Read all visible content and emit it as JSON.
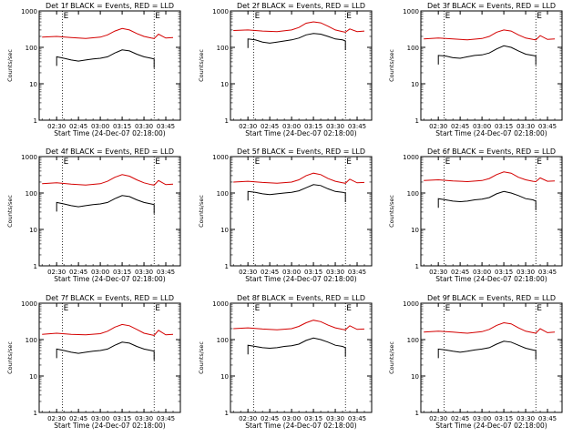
{
  "common": {
    "title_suffix": "BLACK = Events, RED = LLD",
    "xlabel": "Start Time (24-Dec-07 02:18:00)",
    "ylabel": "Counts/sec",
    "x_ticks": [
      "02:30",
      "02:45",
      "03:00",
      "03:15",
      "03:30",
      "03:45"
    ],
    "y_ticks": [
      "1",
      "10",
      "100",
      "1000"
    ],
    "marker_label": "E",
    "colors": {
      "events": "#000000",
      "lld": "#d40000"
    }
  },
  "chart_data": [
    {
      "type": "line",
      "title": "Det 1f BLACK = Events, RED = LLD",
      "xlabel": "Start Time (24-Dec-07 02:18:00)",
      "ylabel": "Counts/sec",
      "yscale": "log",
      "ylim": [
        1,
        1000
      ],
      "x_ticks": [
        "02:30",
        "02:45",
        "03:00",
        "03:15",
        "03:30",
        "03:45"
      ],
      "y_ticks": [
        "1",
        "10",
        "100",
        "1000"
      ],
      "vlines": [
        "02:34",
        "03:37"
      ],
      "vline_label": "E",
      "series": [
        {
          "name": "Events",
          "color": "#000000",
          "x": [
            "02:30",
            "02:35",
            "02:40",
            "02:45",
            "02:50",
            "02:55",
            "03:00",
            "03:05",
            "03:10",
            "03:15",
            "03:20",
            "03:25",
            "03:30",
            "03:35",
            "03:37"
          ],
          "values": [
            55,
            50,
            45,
            42,
            45,
            48,
            50,
            55,
            70,
            85,
            80,
            65,
            55,
            50,
            48
          ]
        },
        {
          "name": "LLD",
          "color": "#d40000",
          "x": [
            "02:20",
            "02:30",
            "02:40",
            "02:50",
            "03:00",
            "03:05",
            "03:10",
            "03:15",
            "03:20",
            "03:25",
            "03:30",
            "03:35",
            "03:37",
            "03:40",
            "03:45",
            "03:50"
          ],
          "values": [
            190,
            200,
            185,
            175,
            190,
            220,
            280,
            330,
            300,
            240,
            200,
            180,
            175,
            230,
            180,
            185
          ]
        }
      ]
    },
    {
      "type": "line",
      "title": "Det 2f BLACK = Events, RED = LLD",
      "xlabel": "Start Time (24-Dec-07 02:18:00)",
      "ylabel": "Counts/sec",
      "yscale": "log",
      "ylim": [
        1,
        1000
      ],
      "x_ticks": [
        "02:30",
        "02:45",
        "03:00",
        "03:15",
        "03:30",
        "03:45"
      ],
      "y_ticks": [
        "1",
        "10",
        "100",
        "1000"
      ],
      "vlines": [
        "02:34",
        "03:37"
      ],
      "vline_label": "E",
      "series": [
        {
          "name": "Events",
          "color": "#000000",
          "x": [
            "02:30",
            "02:35",
            "02:40",
            "02:45",
            "02:50",
            "02:55",
            "03:00",
            "03:05",
            "03:10",
            "03:15",
            "03:20",
            "03:25",
            "03:30",
            "03:35",
            "03:37"
          ],
          "values": [
            170,
            160,
            140,
            130,
            140,
            150,
            160,
            180,
            220,
            240,
            230,
            200,
            170,
            160,
            150
          ]
        },
        {
          "name": "LLD",
          "color": "#d40000",
          "x": [
            "02:20",
            "02:30",
            "02:40",
            "02:50",
            "03:00",
            "03:05",
            "03:10",
            "03:15",
            "03:20",
            "03:25",
            "03:30",
            "03:35",
            "03:37",
            "03:40",
            "03:45",
            "03:50"
          ],
          "values": [
            290,
            300,
            280,
            270,
            300,
            350,
            460,
            500,
            470,
            380,
            300,
            270,
            260,
            320,
            270,
            280
          ]
        }
      ]
    },
    {
      "type": "line",
      "title": "Det 3f BLACK = Events, RED = LLD",
      "xlabel": "Start Time (24-Dec-07 02:18:00)",
      "ylabel": "Counts/sec",
      "yscale": "log",
      "ylim": [
        1,
        1000
      ],
      "x_ticks": [
        "02:30",
        "02:45",
        "03:00",
        "03:15",
        "03:30",
        "03:45"
      ],
      "y_ticks": [
        "1",
        "10",
        "100",
        "1000"
      ],
      "vlines": [
        "02:34",
        "03:37"
      ],
      "vline_label": "E",
      "series": [
        {
          "name": "Events",
          "color": "#000000",
          "x": [
            "02:30",
            "02:35",
            "02:40",
            "02:45",
            "02:50",
            "02:55",
            "03:00",
            "03:05",
            "03:10",
            "03:15",
            "03:20",
            "03:25",
            "03:30",
            "03:35",
            "03:37"
          ],
          "values": [
            60,
            58,
            52,
            50,
            55,
            60,
            62,
            70,
            90,
            110,
            100,
            80,
            65,
            60,
            58
          ]
        },
        {
          "name": "LLD",
          "color": "#d40000",
          "x": [
            "02:20",
            "02:30",
            "02:40",
            "02:50",
            "03:00",
            "03:05",
            "03:10",
            "03:15",
            "03:20",
            "03:25",
            "03:30",
            "03:35",
            "03:37",
            "03:40",
            "03:45",
            "03:50"
          ],
          "values": [
            170,
            180,
            170,
            160,
            175,
            200,
            260,
            300,
            280,
            220,
            180,
            165,
            160,
            210,
            165,
            170
          ]
        }
      ]
    },
    {
      "type": "line",
      "title": "Det 4f BLACK = Events, RED = LLD",
      "xlabel": "Start Time (24-Dec-07 02:18:00)",
      "ylabel": "Counts/sec",
      "yscale": "log",
      "ylim": [
        1,
        1000
      ],
      "x_ticks": [
        "02:30",
        "02:45",
        "03:00",
        "03:15",
        "03:30",
        "03:45"
      ],
      "y_ticks": [
        "1",
        "10",
        "100",
        "1000"
      ],
      "vlines": [
        "02:34",
        "03:37"
      ],
      "vline_label": "E",
      "series": [
        {
          "name": "Events",
          "color": "#000000",
          "x": [
            "02:30",
            "02:35",
            "02:40",
            "02:45",
            "02:50",
            "02:55",
            "03:00",
            "03:05",
            "03:10",
            "03:15",
            "03:20",
            "03:25",
            "03:30",
            "03:35",
            "03:37"
          ],
          "values": [
            55,
            50,
            45,
            42,
            45,
            48,
            50,
            55,
            70,
            85,
            80,
            65,
            55,
            50,
            48
          ]
        },
        {
          "name": "LLD",
          "color": "#d40000",
          "x": [
            "02:20",
            "02:30",
            "02:40",
            "02:50",
            "03:00",
            "03:05",
            "03:10",
            "03:15",
            "03:20",
            "03:25",
            "03:30",
            "03:35",
            "03:37",
            "03:40",
            "03:45",
            "03:50"
          ],
          "values": [
            180,
            190,
            175,
            165,
            180,
            210,
            270,
            320,
            290,
            230,
            190,
            170,
            165,
            220,
            170,
            175
          ]
        }
      ]
    },
    {
      "type": "line",
      "title": "Det 5f BLACK = Events, RED = LLD",
      "xlabel": "Start Time (24-Dec-07 02:18:00)",
      "ylabel": "Counts/sec",
      "yscale": "log",
      "ylim": [
        1,
        1000
      ],
      "x_ticks": [
        "02:30",
        "02:45",
        "03:00",
        "03:15",
        "03:30",
        "03:45"
      ],
      "y_ticks": [
        "1",
        "10",
        "100",
        "1000"
      ],
      "vlines": [
        "02:34",
        "03:37"
      ],
      "vline_label": "E",
      "series": [
        {
          "name": "Events",
          "color": "#000000",
          "x": [
            "02:30",
            "02:35",
            "02:40",
            "02:45",
            "02:50",
            "02:55",
            "03:00",
            "03:05",
            "03:10",
            "03:15",
            "03:20",
            "03:25",
            "03:30",
            "03:35",
            "03:37"
          ],
          "values": [
            110,
            105,
            95,
            90,
            95,
            100,
            105,
            115,
            140,
            170,
            160,
            130,
            110,
            105,
            100
          ]
        },
        {
          "name": "LLD",
          "color": "#d40000",
          "x": [
            "02:20",
            "02:30",
            "02:40",
            "02:50",
            "03:00",
            "03:05",
            "03:10",
            "03:15",
            "03:20",
            "03:25",
            "03:30",
            "03:35",
            "03:37",
            "03:40",
            "03:45",
            "03:50"
          ],
          "values": [
            200,
            210,
            195,
            185,
            200,
            230,
            300,
            350,
            320,
            250,
            210,
            190,
            185,
            240,
            190,
            195
          ]
        }
      ]
    },
    {
      "type": "line",
      "title": "Det 6f BLACK = Events, RED = LLD",
      "xlabel": "Start Time (24-Dec-07 02:18:00)",
      "ylabel": "Counts/sec",
      "yscale": "log",
      "ylim": [
        1,
        1000
      ],
      "x_ticks": [
        "02:30",
        "02:45",
        "03:00",
        "03:15",
        "03:30",
        "03:45"
      ],
      "y_ticks": [
        "1",
        "10",
        "100",
        "1000"
      ],
      "vlines": [
        "02:34",
        "03:37"
      ],
      "vline_label": "E",
      "series": [
        {
          "name": "Events",
          "color": "#000000",
          "x": [
            "02:30",
            "02:35",
            "02:40",
            "02:45",
            "02:50",
            "02:55",
            "03:00",
            "03:05",
            "03:10",
            "03:15",
            "03:20",
            "03:25",
            "03:30",
            "03:35",
            "03:37"
          ],
          "values": [
            70,
            65,
            60,
            58,
            60,
            65,
            68,
            75,
            95,
            110,
            100,
            85,
            70,
            65,
            60
          ]
        },
        {
          "name": "LLD",
          "color": "#d40000",
          "x": [
            "02:20",
            "02:30",
            "02:40",
            "02:50",
            "03:00",
            "03:05",
            "03:10",
            "03:15",
            "03:20",
            "03:25",
            "03:30",
            "03:35",
            "03:37",
            "03:40",
            "03:45",
            "03:50"
          ],
          "values": [
            220,
            230,
            215,
            205,
            220,
            250,
            320,
            380,
            350,
            270,
            230,
            210,
            205,
            260,
            210,
            215
          ]
        }
      ]
    },
    {
      "type": "line",
      "title": "Det 7f BLACK = Events, RED = LLD",
      "xlabel": "Start Time (24-Dec-07 02:18:00)",
      "ylabel": "Counts/sec",
      "yscale": "log",
      "ylim": [
        1,
        1000
      ],
      "x_ticks": [
        "02:30",
        "02:45",
        "03:00",
        "03:15",
        "03:30",
        "03:45"
      ],
      "y_ticks": [
        "1",
        "10",
        "100",
        "1000"
      ],
      "vlines": [
        "02:34",
        "03:37"
      ],
      "vline_label": "E",
      "series": [
        {
          "name": "Events",
          "color": "#000000",
          "x": [
            "02:30",
            "02:35",
            "02:40",
            "02:45",
            "02:50",
            "02:55",
            "03:00",
            "03:05",
            "03:10",
            "03:15",
            "03:20",
            "03:25",
            "03:30",
            "03:35",
            "03:37"
          ],
          "values": [
            55,
            50,
            45,
            42,
            45,
            48,
            50,
            55,
            70,
            85,
            80,
            65,
            55,
            50,
            48
          ]
        },
        {
          "name": "LLD",
          "color": "#d40000",
          "x": [
            "02:20",
            "02:30",
            "02:40",
            "02:50",
            "03:00",
            "03:05",
            "03:10",
            "03:15",
            "03:20",
            "03:25",
            "03:30",
            "03:35",
            "03:37",
            "03:40",
            "03:45",
            "03:50"
          ],
          "values": [
            140,
            150,
            140,
            135,
            145,
            170,
            220,
            260,
            240,
            190,
            150,
            135,
            130,
            180,
            135,
            140
          ]
        }
      ]
    },
    {
      "type": "line",
      "title": "Det 8f BLACK = Events, RED = LLD",
      "xlabel": "Start Time (24-Dec-07 02:18:00)",
      "ylabel": "Counts/sec",
      "yscale": "log",
      "ylim": [
        1,
        1000
      ],
      "x_ticks": [
        "02:30",
        "02:45",
        "03:00",
        "03:15",
        "03:30",
        "03:45"
      ],
      "y_ticks": [
        "1",
        "10",
        "100",
        "1000"
      ],
      "vlines": [
        "02:34",
        "03:37"
      ],
      "vline_label": "E",
      "series": [
        {
          "name": "Events",
          "color": "#000000",
          "x": [
            "02:30",
            "02:35",
            "02:40",
            "02:45",
            "02:50",
            "02:55",
            "03:00",
            "03:05",
            "03:10",
            "03:15",
            "03:20",
            "03:25",
            "03:30",
            "03:35",
            "03:37"
          ],
          "values": [
            70,
            65,
            60,
            58,
            60,
            65,
            68,
            75,
            95,
            110,
            100,
            85,
            70,
            65,
            60
          ]
        },
        {
          "name": "LLD",
          "color": "#d40000",
          "x": [
            "02:20",
            "02:30",
            "02:40",
            "02:50",
            "03:00",
            "03:05",
            "03:10",
            "03:15",
            "03:20",
            "03:25",
            "03:30",
            "03:35",
            "03:37",
            "03:40",
            "03:45",
            "03:50"
          ],
          "values": [
            200,
            210,
            195,
            185,
            200,
            230,
            290,
            340,
            310,
            250,
            210,
            190,
            185,
            240,
            190,
            195
          ]
        }
      ]
    },
    {
      "type": "line",
      "title": "Det 9f BLACK = Events, RED = LLD",
      "xlabel": "Start Time (24-Dec-07 02:18:00)",
      "ylabel": "Counts/sec",
      "yscale": "log",
      "ylim": [
        1,
        1000
      ],
      "x_ticks": [
        "02:30",
        "02:45",
        "03:00",
        "03:15",
        "03:30",
        "03:45"
      ],
      "y_ticks": [
        "1",
        "10",
        "100",
        "1000"
      ],
      "vlines": [
        "02:34",
        "03:37"
      ],
      "vline_label": "E",
      "series": [
        {
          "name": "Events",
          "color": "#000000",
          "x": [
            "02:30",
            "02:35",
            "02:40",
            "02:45",
            "02:50",
            "02:55",
            "03:00",
            "03:05",
            "03:10",
            "03:15",
            "03:20",
            "03:25",
            "03:30",
            "03:35",
            "03:37"
          ],
          "values": [
            55,
            52,
            48,
            45,
            48,
            52,
            55,
            60,
            75,
            90,
            85,
            70,
            58,
            52,
            50
          ]
        },
        {
          "name": "LLD",
          "color": "#d40000",
          "x": [
            "02:20",
            "02:30",
            "02:40",
            "02:50",
            "03:00",
            "03:05",
            "03:10",
            "03:15",
            "03:20",
            "03:25",
            "03:30",
            "03:35",
            "03:37",
            "03:40",
            "03:45",
            "03:50"
          ],
          "values": [
            160,
            170,
            160,
            150,
            165,
            190,
            245,
            290,
            270,
            210,
            170,
            155,
            150,
            200,
            155,
            160
          ]
        }
      ]
    }
  ]
}
